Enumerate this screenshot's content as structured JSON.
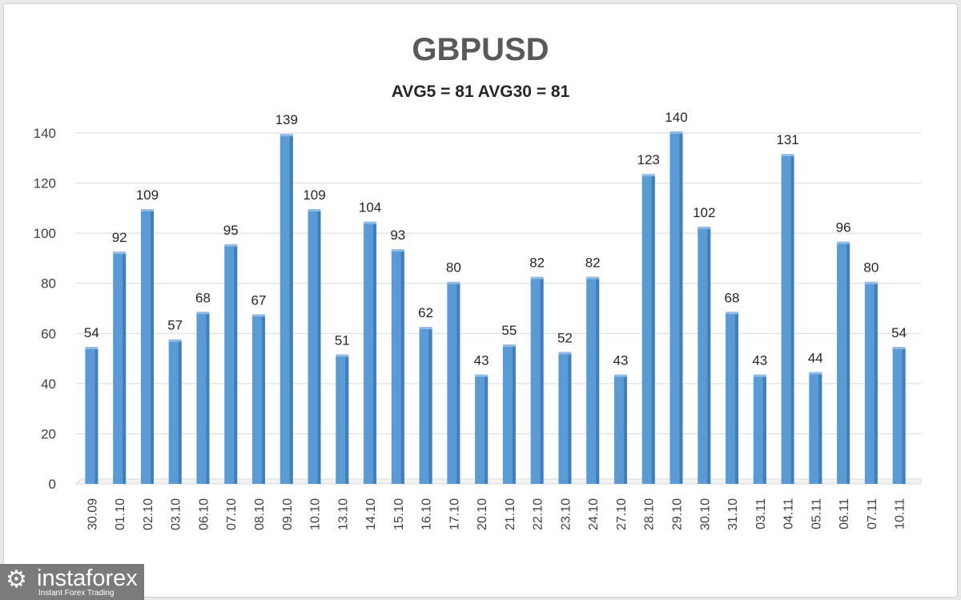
{
  "chart_data": {
    "type": "bar",
    "title": "GBPUSD",
    "subtitle": "AVG5 = 81 AVG30 = 81",
    "categories": [
      "30.09",
      "01.10",
      "02.10",
      "03.10",
      "06.10",
      "07.10",
      "08.10",
      "09.10",
      "10.10",
      "13.10",
      "14.10",
      "15.10",
      "16.10",
      "17.10",
      "20.10",
      "21.10",
      "22.10",
      "23.10",
      "24.10",
      "27.10",
      "28.10",
      "29.10",
      "30.10",
      "31.10",
      "03.11",
      "04.11",
      "05.11",
      "06.11",
      "07.11",
      "10.11"
    ],
    "values": [
      54,
      92,
      109,
      57,
      68,
      95,
      67,
      139,
      109,
      51,
      104,
      93,
      62,
      80,
      43,
      55,
      82,
      52,
      82,
      43,
      123,
      140,
      102,
      68,
      43,
      131,
      44,
      96,
      80,
      54
    ],
    "ylim": [
      0,
      140
    ],
    "yticks": [
      0,
      20,
      40,
      60,
      80,
      100,
      120,
      140
    ],
    "grid": true,
    "bar_color": "#5b9bd5",
    "data_labels": true
  },
  "watermark": {
    "name": "instaforex",
    "tagline": "Instant Forex Trading"
  }
}
